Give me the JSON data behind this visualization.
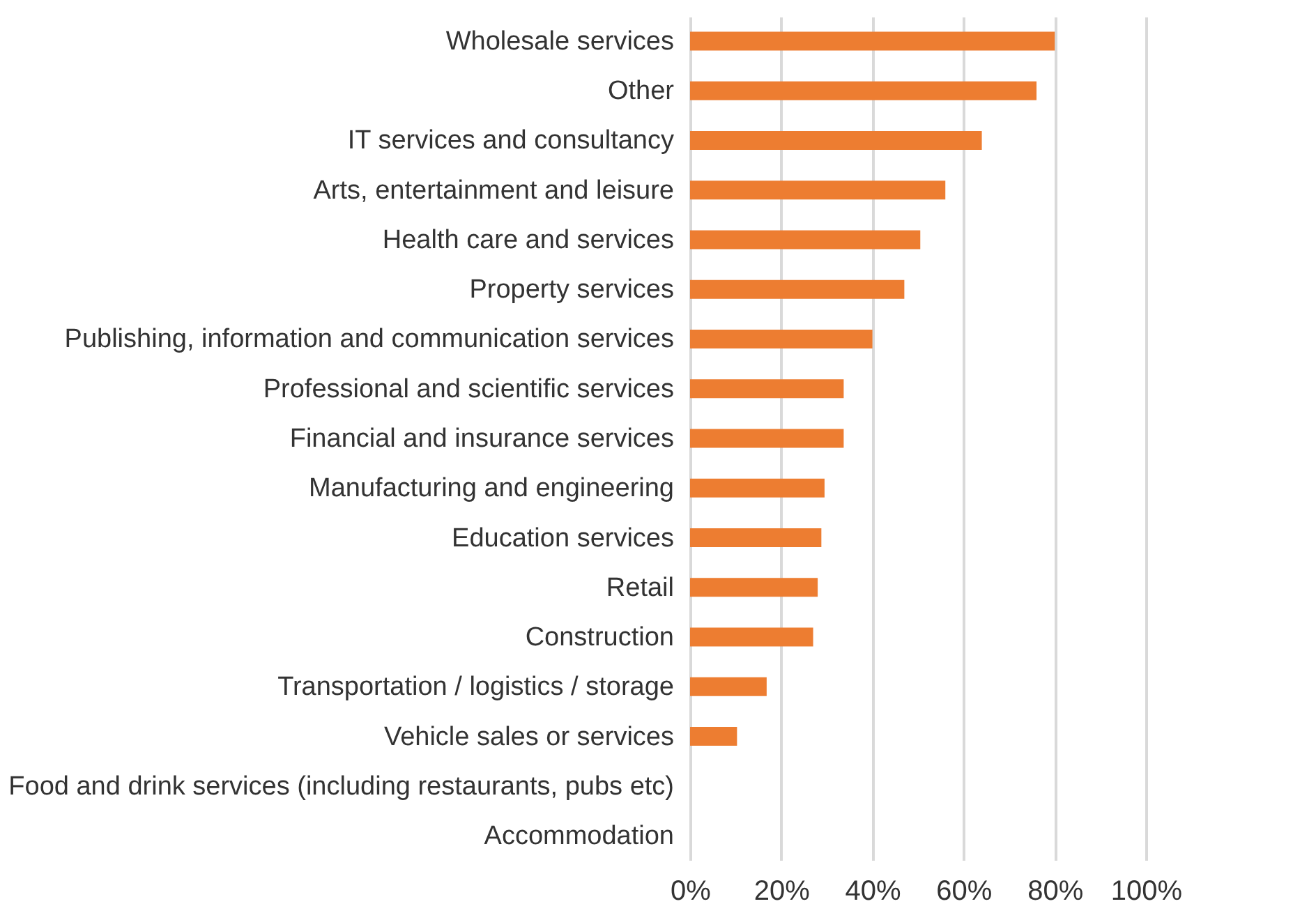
{
  "chart_data": {
    "type": "bar",
    "orientation": "horizontal",
    "categories": [
      "Wholesale services",
      "Other",
      "IT services and consultancy",
      "Arts, entertainment and leisure",
      "Health care and services",
      "Property services",
      "Publishing, information and communication services",
      "Professional and scientific services",
      "Financial and insurance services",
      "Manufacturing and engineering",
      "Education services",
      "Retail",
      "Construction",
      "Transportation / logistics / storage",
      "Vehicle sales or services",
      "Food and drink services (including restaurants, pubs etc)",
      "Accommodation"
    ],
    "values": [
      80,
      76,
      64,
      56,
      50.5,
      47,
      40,
      33.7,
      33.7,
      29.5,
      28.8,
      28,
      27,
      16.8,
      10.3,
      0,
      0
    ],
    "color": "#ed7d31",
    "xlim": [
      0,
      100
    ],
    "xticks": [
      {
        "value": 0,
        "label": "0%"
      },
      {
        "value": 20,
        "label": "20%"
      },
      {
        "value": 40,
        "label": "40%"
      },
      {
        "value": 60,
        "label": "60%"
      },
      {
        "value": 80,
        "label": "80%"
      },
      {
        "value": 100,
        "label": "100%"
      }
    ],
    "grid": "x"
  }
}
